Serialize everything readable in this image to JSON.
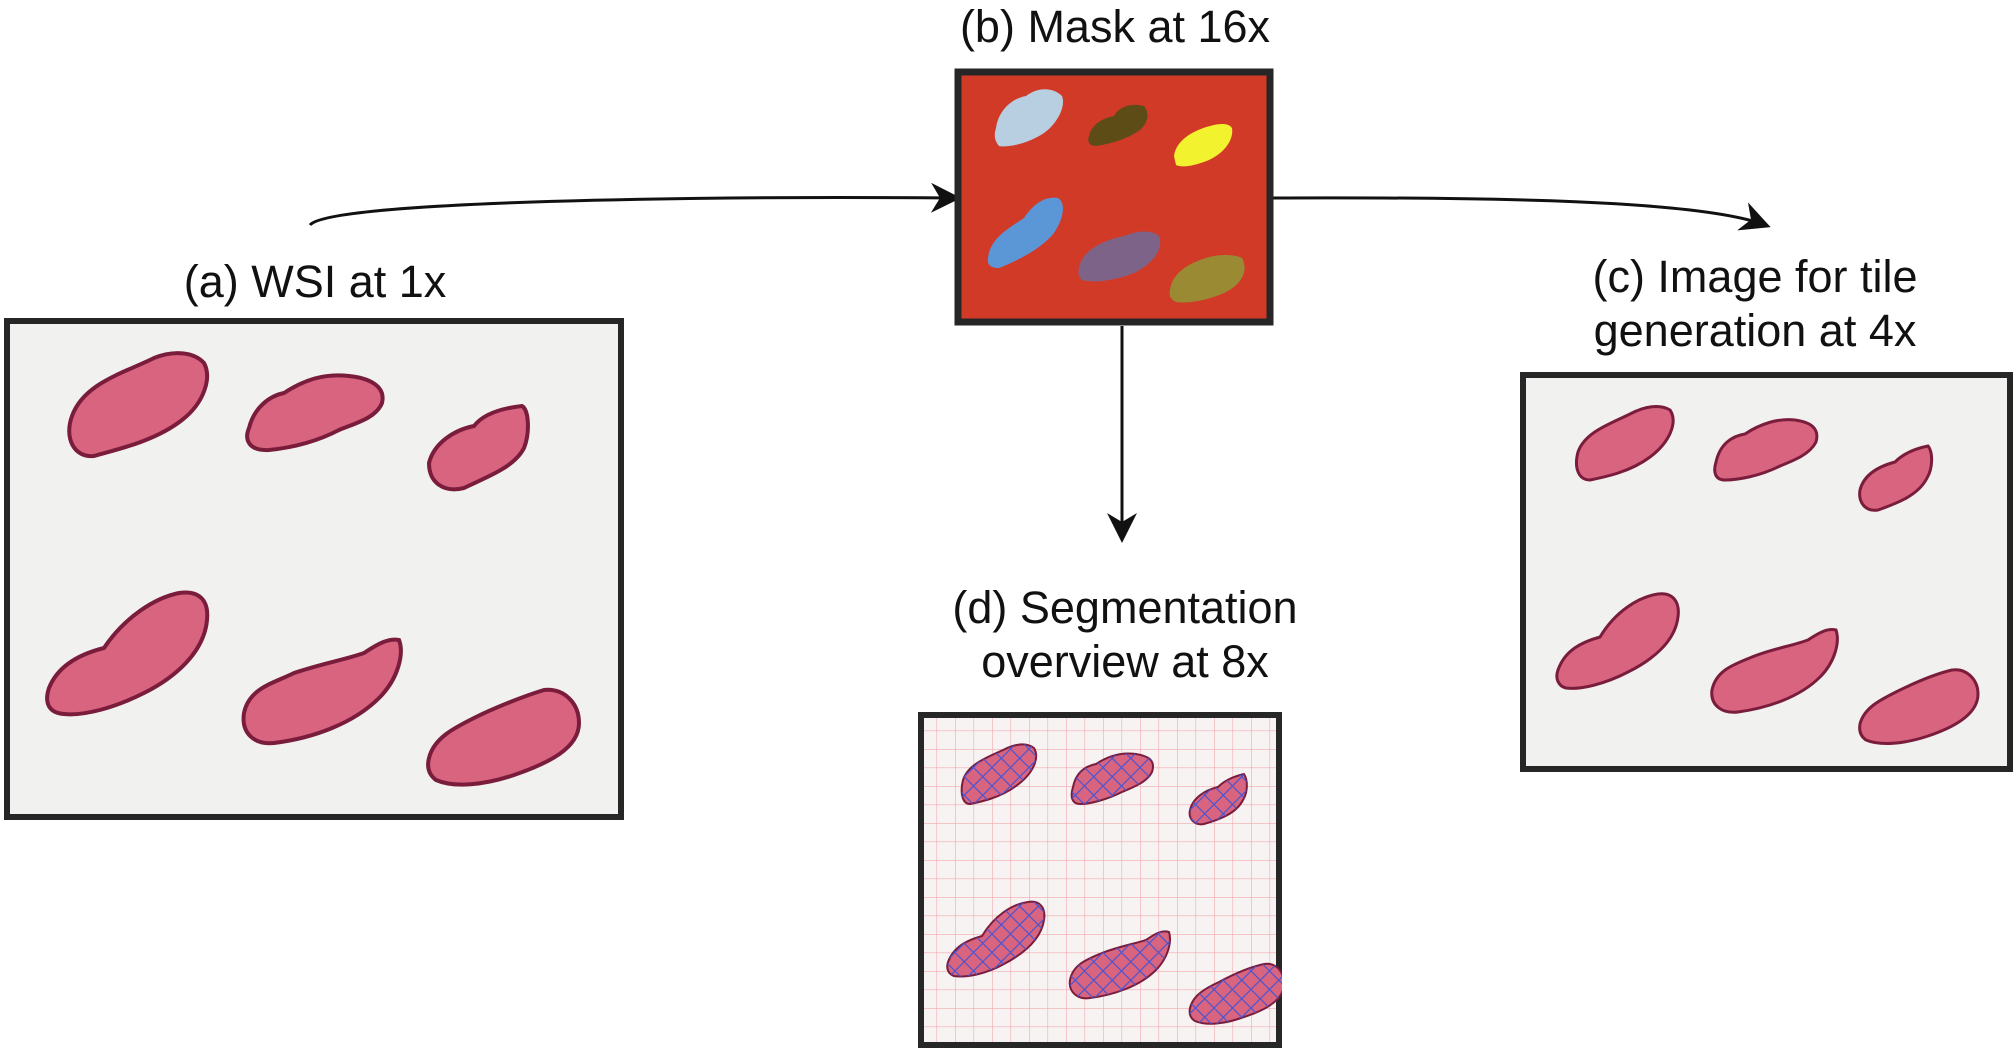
{
  "panels": {
    "a": {
      "caption": "(a) WSI at 1x"
    },
    "b": {
      "caption": "(b) Mask at 16x"
    },
    "c": {
      "caption_line1": "(c) Image for tile",
      "caption_line2": "generation at 4x"
    },
    "d": {
      "caption_line1": "(d) Segmentation",
      "caption_line2": "overview at 8x"
    }
  },
  "colors": {
    "frame": "#262626",
    "slide_bg": "#f1f1ef",
    "tissue_fill": "#d9647f",
    "tissue_edge": "#7a1d3d",
    "mask_bg": "#d23a28",
    "mask_regions": [
      "#b7cfe0",
      "#5e4c16",
      "#f2f22e",
      "#5b96d6",
      "#7e6389",
      "#9a8a33"
    ],
    "grid_line": "#f2a8ad",
    "cross_mark": "#4b55d1",
    "arrow": "#111111"
  }
}
